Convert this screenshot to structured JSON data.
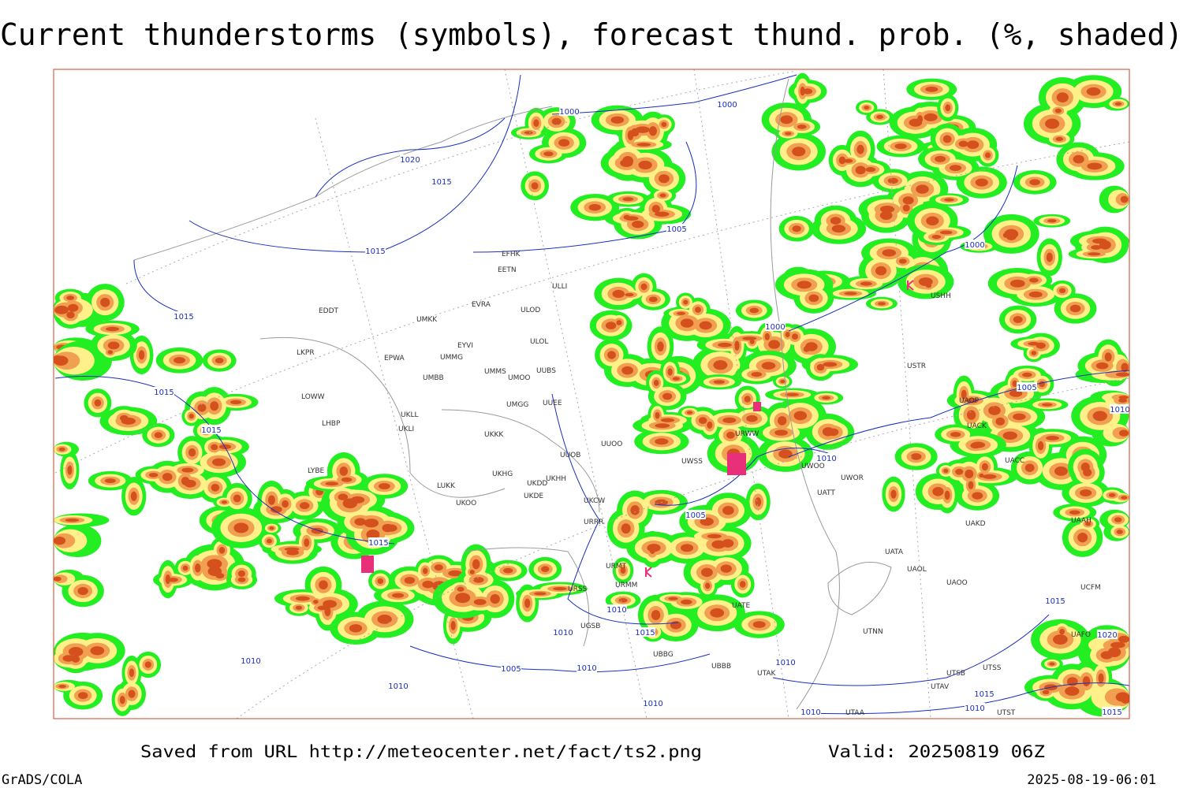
{
  "header": {
    "title": "Current thunderstorms (symbols), forecast thund. prob. (%, shaded)"
  },
  "footer": {
    "source": "Saved from URL http://meteocenter.net/fact/ts2.png",
    "valid": "Valid: 20250819 06Z",
    "software": "GrADS/COLA",
    "timestamp": "2025-08-19-06:01"
  },
  "isobar_labels": [
    "1000",
    "1000",
    "1020",
    "1015",
    "1015",
    "1005",
    "1015",
    "1015",
    "1015",
    "1000",
    "1000",
    "1005",
    "1010",
    "1005",
    "1015",
    "1010",
    "1010",
    "1015",
    "1010",
    "1005",
    "1010",
    "1010",
    "1010",
    "1010",
    "1010",
    "1015",
    "1020",
    "1015",
    "1010",
    "1015",
    "1010"
  ],
  "stations": [
    "EFHK",
    "EETN",
    "EVRA",
    "ULOD",
    "ULLI",
    "EDDT",
    "UMKK",
    "EYVI",
    "ULOL",
    "EPWA",
    "UMMG",
    "LKPR",
    "UMMS",
    "UMOO",
    "UUBS",
    "UMBB",
    "LOWW",
    "UMGG",
    "UUEE",
    "UKLL",
    "UKLI",
    "LHBP",
    "UKKK",
    "UUOB",
    "UUOO",
    "LYBE",
    "UKHG",
    "UKDD",
    "UKHH",
    "LUKK",
    "UKDE",
    "UKCW",
    "UKOO",
    "URRR",
    "UWSS",
    "URWW",
    "UWOO",
    "UWOR",
    "UATT",
    "UACK",
    "UAOP",
    "UACC",
    "UAKD",
    "UAAH",
    "UATA",
    "UAOL",
    "UAOO",
    "UATE",
    "UTNN",
    "UTAK",
    "UBBB",
    "UGSB",
    "URMT",
    "URSS",
    "URMM",
    "USHH",
    "USTR",
    "UTSS",
    "UTSB",
    "UTAV",
    "UTAA",
    "UTST",
    "UAFO",
    "UCFM",
    "UBBG"
  ]
}
